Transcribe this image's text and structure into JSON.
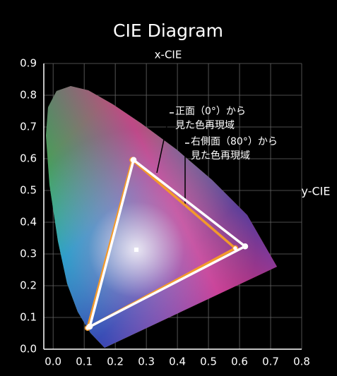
{
  "chart_data": {
    "type": "gamut",
    "title": "CIE Diagram",
    "x_label": "x-CIE",
    "y_label": "y-CIE",
    "xlim": [
      -0.03,
      0.8
    ],
    "ylim": [
      0,
      0.9
    ],
    "xticks": [
      {
        "value": 0,
        "label": "0.0"
      },
      0.1,
      0.2,
      0.3,
      0.4,
      0.5,
      0.6,
      0.7,
      0.8
    ],
    "yticks": [
      {
        "value": 0,
        "label": "0.0"
      },
      0.1,
      0.2,
      0.3,
      0.4,
      0.5,
      0.6,
      0.7,
      0.8,
      0.9
    ],
    "grid": true,
    "series": [
      {
        "color": "#f39a2b",
        "x": [
          0.255,
          0.586,
          0.111
        ],
        "y": [
          0.596,
          0.318,
          0.067
        ]
      },
      {
        "color": "#ffffff",
        "x": [
          0.259,
          0.618,
          0.118
        ],
        "y": [
          0.596,
          0.324,
          0.071
        ]
      }
    ],
    "annotations": [
      {
        "lines": [
          "正面（0°）から",
          "見た色再現域"
        ]
      },
      {
        "lines": [
          "右側面（80°）から",
          "見た色再現域"
        ]
      }
    ]
  }
}
